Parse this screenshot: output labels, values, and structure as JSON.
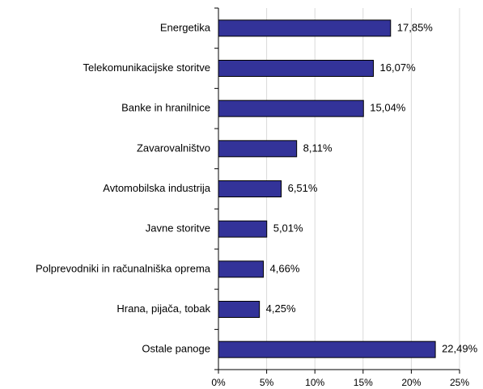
{
  "chart_data": {
    "type": "bar",
    "orientation": "horizontal",
    "categories": [
      "Energetika",
      "Telekomunikacijske storitve",
      "Banke in hranilnice",
      "Zavarovalništvo",
      "Avtomobilska industrija",
      "Javne storitve",
      "Polprevodniki in računalniška oprema",
      "Hrana, pijača, tobak",
      "Ostale panoge"
    ],
    "values": [
      17.85,
      16.07,
      15.04,
      8.11,
      6.51,
      5.01,
      4.66,
      4.25,
      22.49
    ],
    "value_labels": [
      "17,85%",
      "16,07%",
      "15,04%",
      "8,11%",
      "6,51%",
      "5,01%",
      "4,66%",
      "4,25%",
      "22,49%"
    ],
    "color": "#333399",
    "xlim": [
      0,
      25
    ],
    "xticks": [
      {
        "value": 0,
        "label": "0%"
      },
      {
        "value": 5,
        "label": "5%"
      },
      {
        "value": 10,
        "label": "10%"
      },
      {
        "value": 15,
        "label": "15%"
      },
      {
        "value": 20,
        "label": "20%"
      },
      {
        "value": 25,
        "label": "25%"
      }
    ],
    "grid": true
  }
}
